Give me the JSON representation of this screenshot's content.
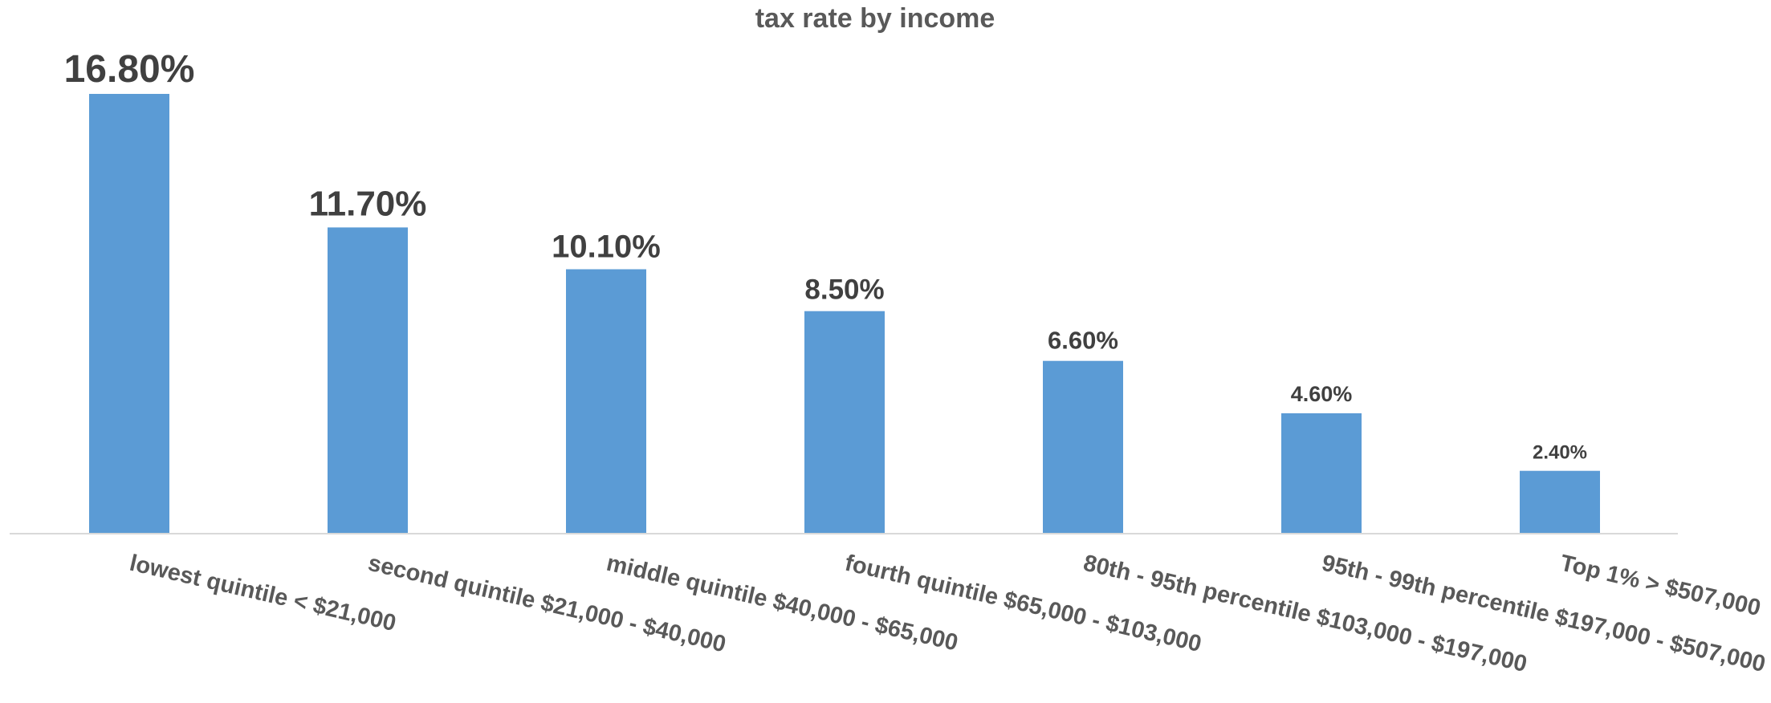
{
  "chart_data": {
    "type": "bar",
    "title": "tax rate by income",
    "xlabel": "",
    "ylabel": "",
    "categories": [
      "lowest quintile < $21,000",
      "second quintile $21,000 - $40,000",
      "middle quintile $40,000 - $65,000",
      "fourth quintile $65,000 - $103,000",
      "80th - 95th percentile $103,000 - $197,000",
      "95th - 99th percentile $197,000 - $507,000",
      "Top 1% > $507,000"
    ],
    "values": [
      16.8,
      11.7,
      10.1,
      8.5,
      6.6,
      4.6,
      2.4
    ],
    "data_labels": [
      "16.80%",
      "11.70%",
      "10.10%",
      "8.50%",
      "6.60%",
      "4.60%",
      "2.40%"
    ],
    "ylim": [
      0,
      16.8
    ],
    "y_axis_visible": false,
    "grid": false,
    "legend": "none",
    "colors": {
      "bar": "#5B9BD5",
      "axis_line": "#D9D9D9",
      "title": "#595959",
      "category_label": "#595959",
      "data_label": "#404040"
    }
  }
}
